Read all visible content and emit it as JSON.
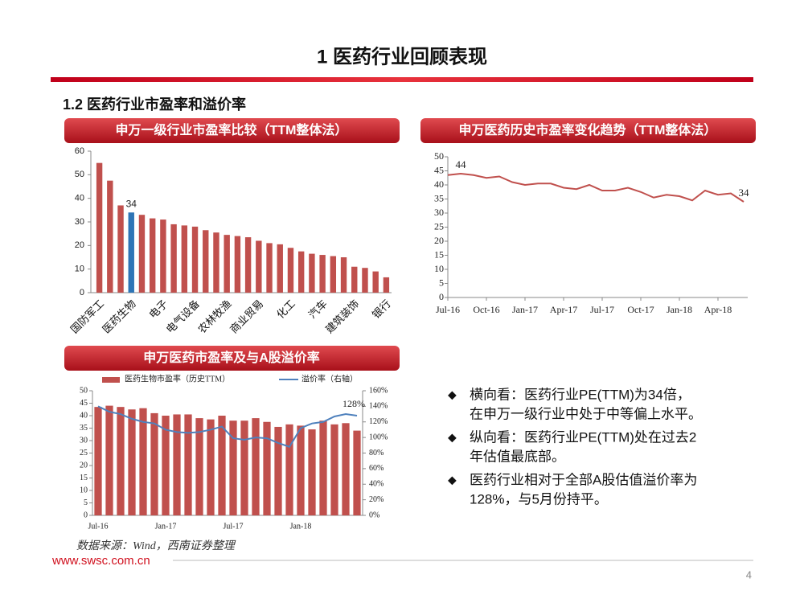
{
  "header": {
    "title": "1 医药行业回顾表现",
    "subtitle": "1.2 医药行业市盈率和溢价率"
  },
  "chart_data": [
    {
      "type": "bar",
      "title": "申万一级行业市盈率比较（TTM整体法）",
      "categories": [
        "国防军工",
        null,
        null,
        "医药生物",
        null,
        null,
        "电子",
        null,
        null,
        "电气设备",
        null,
        null,
        "农林牧渔",
        null,
        null,
        "商业贸易",
        null,
        null,
        "化工",
        null,
        null,
        "汽车",
        null,
        null,
        "建筑装饰",
        null,
        null,
        "银行"
      ],
      "values": [
        55,
        47.5,
        37,
        34,
        33,
        31.5,
        31,
        29,
        28.5,
        28,
        26.5,
        25.5,
        24.5,
        24,
        23.5,
        22,
        21,
        20.5,
        19,
        17.5,
        16.5,
        16,
        15.5,
        15,
        11,
        10.5,
        9,
        6.5
      ],
      "value_labels": [
        null,
        null,
        null,
        "34",
        null,
        null,
        null,
        null,
        null,
        null,
        null,
        null,
        null,
        null,
        null,
        null,
        null,
        null,
        null,
        null,
        null,
        null,
        null,
        null,
        null,
        null,
        null,
        null
      ],
      "colors": [
        "#c0504d",
        "#c0504d",
        "#c0504d",
        "#2e75b6",
        "#c0504d",
        "#c0504d",
        "#c0504d",
        "#c0504d",
        "#c0504d",
        "#c0504d",
        "#c0504d",
        "#c0504d",
        "#c0504d",
        "#c0504d",
        "#c0504d",
        "#c0504d",
        "#c0504d",
        "#c0504d",
        "#c0504d",
        "#c0504d",
        "#c0504d",
        "#c0504d",
        "#c0504d",
        "#c0504d",
        "#c0504d",
        "#c0504d",
        "#c0504d",
        "#c0504d"
      ],
      "ylim": [
        0,
        60
      ],
      "yticks": [
        0,
        10,
        20,
        30,
        40,
        50,
        60
      ]
    },
    {
      "type": "line",
      "title": "申万医药历史市盈率变化趋势（TTM整体法）",
      "categories": [
        "Jul-16",
        null,
        null,
        "Oct-16",
        null,
        null,
        "Jan-17",
        null,
        null,
        "Apr-17",
        null,
        null,
        "Jul-17",
        null,
        null,
        "Oct-17",
        null,
        null,
        "Jan-18",
        null,
        null,
        "Apr-18",
        null,
        null
      ],
      "values": [
        43.5,
        44,
        43.5,
        42.5,
        43,
        41,
        40,
        40.5,
        40.5,
        39,
        38.5,
        40,
        38,
        38,
        39,
        37.5,
        35.5,
        36.5,
        36,
        34.5,
        38,
        36.5,
        37,
        34
      ],
      "value_labels": [
        null,
        "44",
        null,
        null,
        null,
        null,
        null,
        null,
        null,
        null,
        null,
        null,
        null,
        null,
        null,
        null,
        null,
        null,
        null,
        null,
        null,
        null,
        null,
        "34"
      ],
      "color": "#c0504d",
      "ylim": [
        0,
        50
      ],
      "yticks": [
        0,
        5,
        10,
        15,
        20,
        25,
        30,
        35,
        40,
        45,
        50
      ]
    },
    {
      "type": "combo",
      "title": "申万医药市盈率及与A股溢价率",
      "categories": [
        "Jul-16",
        null,
        null,
        null,
        null,
        null,
        "Jan-17",
        null,
        null,
        null,
        null,
        null,
        "Jul-17",
        null,
        null,
        null,
        null,
        null,
        "Jan-18",
        null,
        null,
        null,
        null,
        null
      ],
      "series": [
        {
          "name": "医药生物市盈率（历史TTM）",
          "type": "bar",
          "color": "#c0504d",
          "values": [
            43.5,
            44,
            43.5,
            42.5,
            43,
            41,
            40,
            40.5,
            40.5,
            39,
            38.5,
            40,
            38,
            38,
            39,
            37.5,
            35.5,
            36.5,
            36,
            34.5,
            38,
            36.5,
            37,
            34
          ]
        },
        {
          "name": "溢价率（右轴）",
          "type": "line",
          "axis": "y2",
          "color": "#4f81bd",
          "values": [
            140,
            133,
            130,
            124,
            120,
            118,
            110,
            107,
            106,
            107,
            110,
            114,
            99,
            97,
            100,
            99,
            93,
            88,
            112,
            118,
            120,
            127,
            130,
            128
          ],
          "value_labels": [
            null,
            null,
            null,
            null,
            null,
            null,
            null,
            null,
            null,
            null,
            null,
            null,
            null,
            null,
            null,
            null,
            null,
            null,
            null,
            null,
            null,
            null,
            null,
            "128%"
          ]
        }
      ],
      "ylim": [
        0,
        50
      ],
      "yticks": [
        0,
        5,
        10,
        15,
        20,
        25,
        30,
        35,
        40,
        45,
        50
      ],
      "y2lim": [
        0,
        160
      ],
      "y2ticks": [
        {
          "value": 0,
          "label": "0%"
        },
        {
          "value": 20,
          "label": "20%"
        },
        {
          "value": 40,
          "label": "40%"
        },
        {
          "value": 60,
          "label": "60%"
        },
        {
          "value": 80,
          "label": "80%"
        },
        {
          "value": 100,
          "label": "100%"
        },
        {
          "value": 120,
          "label": "120%"
        },
        {
          "value": 140,
          "label": "140%"
        },
        {
          "value": 160,
          "label": "160%"
        }
      ]
    }
  ],
  "bullets": [
    [
      "横向看：医药行业PE(TTM)为34倍，",
      "在申万一级行业中处于中等偏上水平。"
    ],
    [
      "纵向看：医药行业PE(TTM)处在过去2",
      "年估值最底部。"
    ],
    [
      "医药行业相对于全部A股估值溢价率为",
      "128%，与5月份持平。"
    ]
  ],
  "source": "数据来源：Wind，西南证券整理",
  "website": "www.swsc.com.cn",
  "page_number": 4
}
